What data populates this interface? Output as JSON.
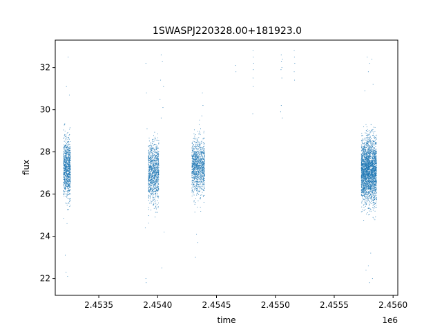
{
  "chart_data": {
    "type": "scatter",
    "title": "1SWASPJ220328.00+181923.0",
    "xlabel": "time",
    "ylabel": "flux",
    "x_offset_label": "1e6",
    "xlim": [
      2.45313,
      2.45604
    ],
    "ylim": [
      21.2,
      33.3
    ],
    "x_ticks": [
      2.4535,
      2.454,
      2.4545,
      2.455,
      2.4555,
      2.456
    ],
    "x_tick_labels": [
      "2.4535",
      "2.4540",
      "2.4545",
      "2.4550",
      "2.4555",
      "2.4560"
    ],
    "y_ticks": [
      22,
      24,
      26,
      28,
      30,
      32
    ],
    "y_tick_labels": [
      "22",
      "24",
      "26",
      "28",
      "30",
      "32"
    ],
    "grid": false,
    "marker_color": "#1f77b4",
    "series": [
      {
        "clusters": [
          {
            "x": [
              2.4532,
              2.45326
            ],
            "y_center": 27.2,
            "spread": 0.9,
            "n": 900
          },
          {
            "x": [
              2.45392,
              2.45401
            ],
            "y_center": 27.0,
            "spread": 0.95,
            "n": 1000
          },
          {
            "x": [
              2.45429,
              2.4544
            ],
            "y_center": 27.3,
            "spread": 0.85,
            "n": 1100
          },
          {
            "x": [
              2.45573,
              2.45586
            ],
            "y_center": 27.1,
            "spread": 1.0,
            "n": 2600
          }
        ],
        "outliers": [
          {
            "x": 2.45324,
            "y": 32.5
          },
          {
            "x": 2.453225,
            "y": 31.1
          },
          {
            "x": 2.45325,
            "y": 30.7
          },
          {
            "x": 2.45321,
            "y": 29.3
          },
          {
            "x": 2.45323,
            "y": 24.6
          },
          {
            "x": 2.453215,
            "y": 23.1
          },
          {
            "x": 2.453235,
            "y": 22.1
          },
          {
            "x": 2.453222,
            "y": 22.3
          },
          {
            "x": 2.4539,
            "y": 32.2
          },
          {
            "x": 2.453905,
            "y": 30.8
          },
          {
            "x": 2.45391,
            "y": 29.1
          },
          {
            "x": 2.453895,
            "y": 24.4
          },
          {
            "x": 2.4539,
            "y": 22.0
          },
          {
            "x": 2.453902,
            "y": 21.8
          },
          {
            "x": 2.45403,
            "y": 32.6
          },
          {
            "x": 2.45404,
            "y": 32.3
          },
          {
            "x": 2.454025,
            "y": 31.4
          },
          {
            "x": 2.45405,
            "y": 31.1
          },
          {
            "x": 2.45402,
            "y": 30.5
          },
          {
            "x": 2.454045,
            "y": 30.1
          },
          {
            "x": 2.45403,
            "y": 29.6
          },
          {
            "x": 2.454035,
            "y": 22.5
          },
          {
            "x": 2.454055,
            "y": 24.2
          },
          {
            "x": 2.45432,
            "y": 23.0
          },
          {
            "x": 2.45434,
            "y": 23.7
          },
          {
            "x": 2.45433,
            "y": 24.1
          },
          {
            "x": 2.45438,
            "y": 30.8
          },
          {
            "x": 2.454385,
            "y": 30.2
          },
          {
            "x": 2.454375,
            "y": 29.7
          },
          {
            "x": 2.45466,
            "y": 32.1
          },
          {
            "x": 2.454665,
            "y": 31.8
          },
          {
            "x": 2.45481,
            "y": 32.8
          },
          {
            "x": 2.454812,
            "y": 32.5
          },
          {
            "x": 2.454815,
            "y": 32.2
          },
          {
            "x": 2.454812,
            "y": 31.9
          },
          {
            "x": 2.45481,
            "y": 31.5
          },
          {
            "x": 2.454811,
            "y": 31.1
          },
          {
            "x": 2.454808,
            "y": 29.8
          },
          {
            "x": 2.45505,
            "y": 32.6
          },
          {
            "x": 2.455052,
            "y": 32.3
          },
          {
            "x": 2.455055,
            "y": 32.0
          },
          {
            "x": 2.455048,
            "y": 31.9
          },
          {
            "x": 2.45506,
            "y": 32.4
          },
          {
            "x": 2.455055,
            "y": 31.5
          },
          {
            "x": 2.45505,
            "y": 30.2
          },
          {
            "x": 2.455045,
            "y": 29.9
          },
          {
            "x": 2.455058,
            "y": 29.6
          },
          {
            "x": 2.45516,
            "y": 32.8
          },
          {
            "x": 2.455162,
            "y": 32.5
          },
          {
            "x": 2.455165,
            "y": 32.2
          },
          {
            "x": 2.45516,
            "y": 31.8
          },
          {
            "x": 2.455163,
            "y": 31.4
          },
          {
            "x": 2.45578,
            "y": 32.5
          },
          {
            "x": 2.4558,
            "y": 32.2
          },
          {
            "x": 2.45582,
            "y": 32.4
          },
          {
            "x": 2.45579,
            "y": 31.8
          },
          {
            "x": 2.45583,
            "y": 31.2
          },
          {
            "x": 2.45576,
            "y": 30.9
          },
          {
            "x": 2.45581,
            "y": 23.2
          },
          {
            "x": 2.45579,
            "y": 22.6
          },
          {
            "x": 2.4558,
            "y": 21.8
          },
          {
            "x": 2.455825,
            "y": 22.0
          },
          {
            "x": 2.45577,
            "y": 22.4
          }
        ]
      }
    ]
  }
}
